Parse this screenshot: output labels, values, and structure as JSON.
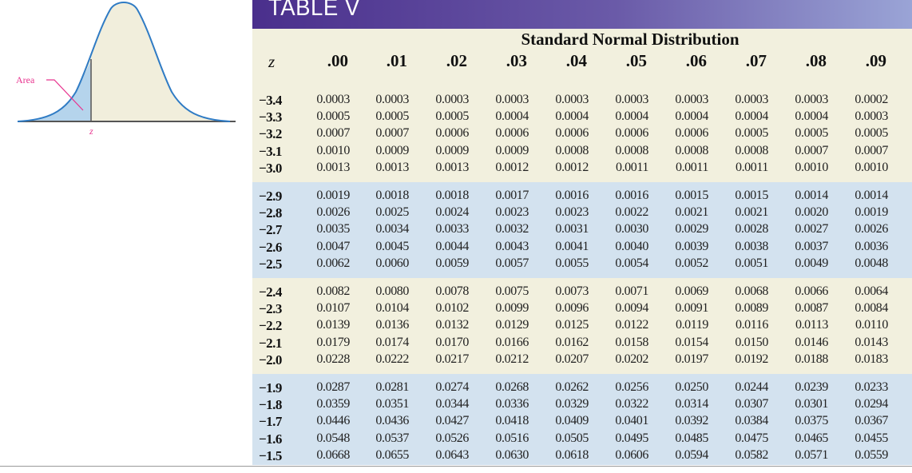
{
  "figure": {
    "area_label": "Area",
    "z_label": "z",
    "colors": {
      "curve": "#2f7bc4",
      "fill_body": "#f1eedc",
      "fill_area": "#b5d4ec",
      "label": "#e8348f",
      "axis": "#555555"
    }
  },
  "table": {
    "banner_title": "TABLE V",
    "caption": "Standard Normal Distribution",
    "z_header": "z",
    "columns": [
      ".00",
      ".01",
      ".02",
      ".03",
      ".04",
      ".05",
      ".06",
      ".07",
      ".08",
      ".09"
    ],
    "groups": [
      {
        "shade": "cream",
        "rows": [
          {
            "z": "−3.4",
            "values": [
              "0.0003",
              "0.0003",
              "0.0003",
              "0.0003",
              "0.0003",
              "0.0003",
              "0.0003",
              "0.0003",
              "0.0003",
              "0.0002"
            ]
          },
          {
            "z": "−3.3",
            "values": [
              "0.0005",
              "0.0005",
              "0.0005",
              "0.0004",
              "0.0004",
              "0.0004",
              "0.0004",
              "0.0004",
              "0.0004",
              "0.0003"
            ]
          },
          {
            "z": "−3.2",
            "values": [
              "0.0007",
              "0.0007",
              "0.0006",
              "0.0006",
              "0.0006",
              "0.0006",
              "0.0006",
              "0.0005",
              "0.0005",
              "0.0005"
            ]
          },
          {
            "z": "−3.1",
            "values": [
              "0.0010",
              "0.0009",
              "0.0009",
              "0.0009",
              "0.0008",
              "0.0008",
              "0.0008",
              "0.0008",
              "0.0007",
              "0.0007"
            ]
          },
          {
            "z": "−3.0",
            "values": [
              "0.0013",
              "0.0013",
              "0.0013",
              "0.0012",
              "0.0012",
              "0.0011",
              "0.0011",
              "0.0011",
              "0.0010",
              "0.0010"
            ]
          }
        ]
      },
      {
        "shade": "blue",
        "rows": [
          {
            "z": "−2.9",
            "values": [
              "0.0019",
              "0.0018",
              "0.0018",
              "0.0017",
              "0.0016",
              "0.0016",
              "0.0015",
              "0.0015",
              "0.0014",
              "0.0014"
            ]
          },
          {
            "z": "−2.8",
            "values": [
              "0.0026",
              "0.0025",
              "0.0024",
              "0.0023",
              "0.0023",
              "0.0022",
              "0.0021",
              "0.0021",
              "0.0020",
              "0.0019"
            ]
          },
          {
            "z": "−2.7",
            "values": [
              "0.0035",
              "0.0034",
              "0.0033",
              "0.0032",
              "0.0031",
              "0.0030",
              "0.0029",
              "0.0028",
              "0.0027",
              "0.0026"
            ]
          },
          {
            "z": "−2.6",
            "values": [
              "0.0047",
              "0.0045",
              "0.0044",
              "0.0043",
              "0.0041",
              "0.0040",
              "0.0039",
              "0.0038",
              "0.0037",
              "0.0036"
            ]
          },
          {
            "z": "−2.5",
            "values": [
              "0.0062",
              "0.0060",
              "0.0059",
              "0.0057",
              "0.0055",
              "0.0054",
              "0.0052",
              "0.0051",
              "0.0049",
              "0.0048"
            ]
          }
        ]
      },
      {
        "shade": "cream",
        "rows": [
          {
            "z": "−2.4",
            "values": [
              "0.0082",
              "0.0080",
              "0.0078",
              "0.0075",
              "0.0073",
              "0.0071",
              "0.0069",
              "0.0068",
              "0.0066",
              "0.0064"
            ]
          },
          {
            "z": "−2.3",
            "values": [
              "0.0107",
              "0.0104",
              "0.0102",
              "0.0099",
              "0.0096",
              "0.0094",
              "0.0091",
              "0.0089",
              "0.0087",
              "0.0084"
            ]
          },
          {
            "z": "−2.2",
            "values": [
              "0.0139",
              "0.0136",
              "0.0132",
              "0.0129",
              "0.0125",
              "0.0122",
              "0.0119",
              "0.0116",
              "0.0113",
              "0.0110"
            ]
          },
          {
            "z": "−2.1",
            "values": [
              "0.0179",
              "0.0174",
              "0.0170",
              "0.0166",
              "0.0162",
              "0.0158",
              "0.0154",
              "0.0150",
              "0.0146",
              "0.0143"
            ]
          },
          {
            "z": "−2.0",
            "values": [
              "0.0228",
              "0.0222",
              "0.0217",
              "0.0212",
              "0.0207",
              "0.0202",
              "0.0197",
              "0.0192",
              "0.0188",
              "0.0183"
            ]
          }
        ]
      },
      {
        "shade": "blue",
        "rows": [
          {
            "z": "−1.9",
            "values": [
              "0.0287",
              "0.0281",
              "0.0274",
              "0.0268",
              "0.0262",
              "0.0256",
              "0.0250",
              "0.0244",
              "0.0239",
              "0.0233"
            ]
          },
          {
            "z": "−1.8",
            "values": [
              "0.0359",
              "0.0351",
              "0.0344",
              "0.0336",
              "0.0329",
              "0.0322",
              "0.0314",
              "0.0307",
              "0.0301",
              "0.0294"
            ]
          },
          {
            "z": "−1.7",
            "values": [
              "0.0446",
              "0.0436",
              "0.0427",
              "0.0418",
              "0.0409",
              "0.0401",
              "0.0392",
              "0.0384",
              "0.0375",
              "0.0367"
            ]
          },
          {
            "z": "−1.6",
            "values": [
              "0.0548",
              "0.0537",
              "0.0526",
              "0.0516",
              "0.0505",
              "0.0495",
              "0.0485",
              "0.0475",
              "0.0465",
              "0.0455"
            ]
          },
          {
            "z": "−1.5",
            "values": [
              "0.0668",
              "0.0655",
              "0.0643",
              "0.0630",
              "0.0618",
              "0.0606",
              "0.0594",
              "0.0582",
              "0.0571",
              "0.0559"
            ]
          }
        ]
      }
    ]
  }
}
